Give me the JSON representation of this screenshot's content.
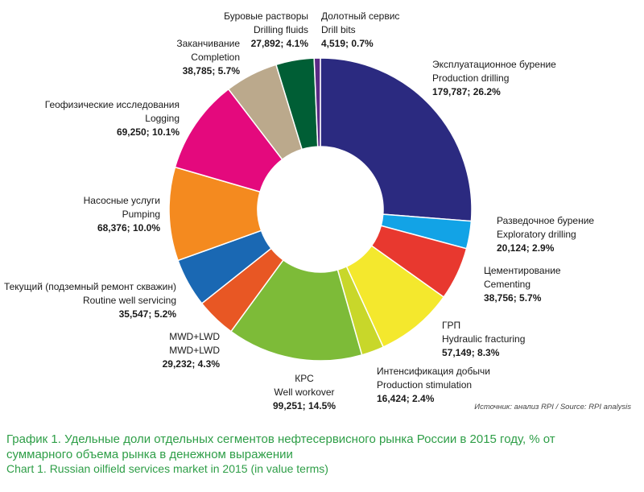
{
  "chart_data": {
    "type": "pie",
    "variant": "donut",
    "title_ru": "График 1. Удельные доли отдельных сегментов нефтесервисного рынка России в 2015 году, % от суммарного объема рынка в денежном выражении",
    "title_en": "Chart 1. Russian oilfield services market in 2015 (in value terms)",
    "source": "Источник: анализ RPI / Source: RPI analysis",
    "slices": [
      {
        "name_ru": "Эксплуатационное бурение",
        "name_en": "Production drilling",
        "value_text": "179,787; 26.2%",
        "value": 179787,
        "percent": 26.2,
        "color": "#2b2a80"
      },
      {
        "name_ru": "Разведочное бурение",
        "name_en": "Exploratory drilling",
        "value_text": "20,124; 2.9%",
        "value": 20124,
        "percent": 2.9,
        "color": "#12a3e6"
      },
      {
        "name_ru": "Цементирование",
        "name_en": "Cementing",
        "value_text": "38,756; 5.7%",
        "value": 38756,
        "percent": 5.7,
        "color": "#e8382f"
      },
      {
        "name_ru": "ГРП",
        "name_en": "Hydraulic fracturing",
        "value_text": "57,149; 8.3%",
        "value": 57149,
        "percent": 8.3,
        "color": "#f4e82d"
      },
      {
        "name_ru": "Интенсификация добычи",
        "name_en": "Production stimulation",
        "value_text": "16,424; 2.4%",
        "value": 16424,
        "percent": 2.4,
        "color": "#c8d72a"
      },
      {
        "name_ru": "КРС",
        "name_en": "Well workover",
        "value_text": "99,251; 14.5%",
        "value": 99251,
        "percent": 14.5,
        "color": "#7dbb38"
      },
      {
        "name_ru": "MWD+LWD",
        "name_en": "MWD+LWD",
        "value_text": "29,232; 4.3%",
        "value": 29232,
        "percent": 4.3,
        "color": "#e85724"
      },
      {
        "name_ru": "Текущий (подземный ремонт скважин)",
        "name_en": "Routine well servicing",
        "value_text": "35,547; 5.2%",
        "value": 35547,
        "percent": 5.2,
        "color": "#1a68b3"
      },
      {
        "name_ru": "Насосные услуги",
        "name_en": "Pumping",
        "value_text": "68,376; 10.0%",
        "value": 68376,
        "percent": 10.0,
        "color": "#f48a1f"
      },
      {
        "name_ru": "Геофизические исследования",
        "name_en": "Logging",
        "value_text": "69,250; 10.1%",
        "value": 69250,
        "percent": 10.1,
        "color": "#e4097d"
      },
      {
        "name_ru": "Заканчивание",
        "name_en": "Completion",
        "value_text": "38,785; 5.7%",
        "value": 38785,
        "percent": 5.7,
        "color": "#bba98c"
      },
      {
        "name_ru": "Буровые растворы",
        "name_en": "Drilling fluids",
        "value_text": "27,892; 4.1%",
        "value": 27892,
        "percent": 4.1,
        "color": "#005e35"
      },
      {
        "name_ru": "Долотный сервис",
        "name_en": "Drill bits",
        "value_text": "4,519; 0.7%",
        "value": 4519,
        "percent": 0.7,
        "color": "#5b2a86"
      }
    ]
  }
}
